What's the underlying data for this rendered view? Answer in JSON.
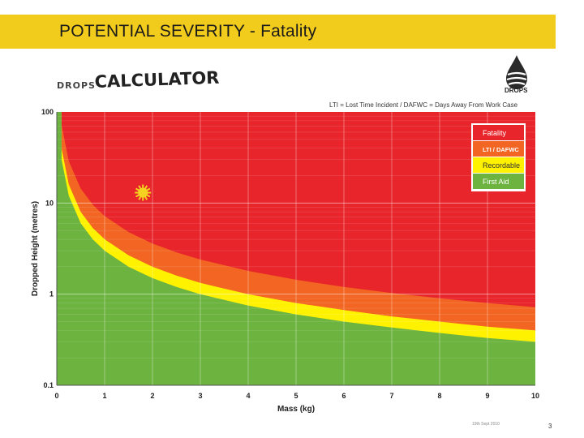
{
  "header": {
    "title": "POTENTIAL SEVERITY - Fatality"
  },
  "logo": {
    "drops_text": "DROPS",
    "calculator_text": "CALCULATOR",
    "brand_text": "DROPS"
  },
  "note": "LTI = Lost Time Incident / DAFWC = Days Away From Work Case",
  "footer": {
    "date": "19th Sept 2010",
    "page": "3"
  },
  "chart_data": {
    "type": "area",
    "xlabel": "Mass (kg)",
    "ylabel": "Dropped Height (metres)",
    "xlim": [
      0,
      10
    ],
    "ylim": [
      0.1,
      100
    ],
    "yscale": "log",
    "x_ticks": [
      "0",
      "1",
      "2",
      "3",
      "4",
      "5",
      "6",
      "7",
      "8",
      "9",
      "10"
    ],
    "y_ticks": [
      {
        "value": 100,
        "label": "100"
      },
      {
        "value": 10,
        "label": "10"
      },
      {
        "value": 1,
        "label": "1"
      },
      {
        "value": 0.1,
        "label": "0.1"
      }
    ],
    "grid": true,
    "legend_position": "top-right",
    "zones": [
      {
        "name": "Fatality",
        "color": "#e8252b"
      },
      {
        "name": "LTI / DAFWC",
        "color": "#f26522"
      },
      {
        "name": "Recordable",
        "color": "#fff200"
      },
      {
        "name": "First Aid",
        "color": "#6cb33f"
      }
    ],
    "boundaries": {
      "x": [
        0.1,
        0.25,
        0.5,
        0.75,
        1,
        1.5,
        2,
        2.5,
        3,
        4,
        5,
        6,
        7,
        8,
        9,
        10
      ],
      "fatality_lower": [
        72,
        28.8,
        14.4,
        9.6,
        7.2,
        4.8,
        3.6,
        2.88,
        2.4,
        1.8,
        1.44,
        1.2,
        1.03,
        0.9,
        0.8,
        0.72
      ],
      "lti_lower": [
        40,
        16,
        8,
        5.33,
        4,
        2.67,
        2,
        1.6,
        1.33,
        1.0,
        0.8,
        0.67,
        0.57,
        0.5,
        0.44,
        0.4
      ],
      "recordable_lower": [
        30,
        12,
        6,
        4,
        3,
        2,
        1.5,
        1.2,
        1.0,
        0.75,
        0.6,
        0.5,
        0.43,
        0.375,
        0.33,
        0.3
      ]
    },
    "highlight_point": {
      "x": 1.8,
      "y": 13,
      "color": "#f5d21f"
    }
  }
}
